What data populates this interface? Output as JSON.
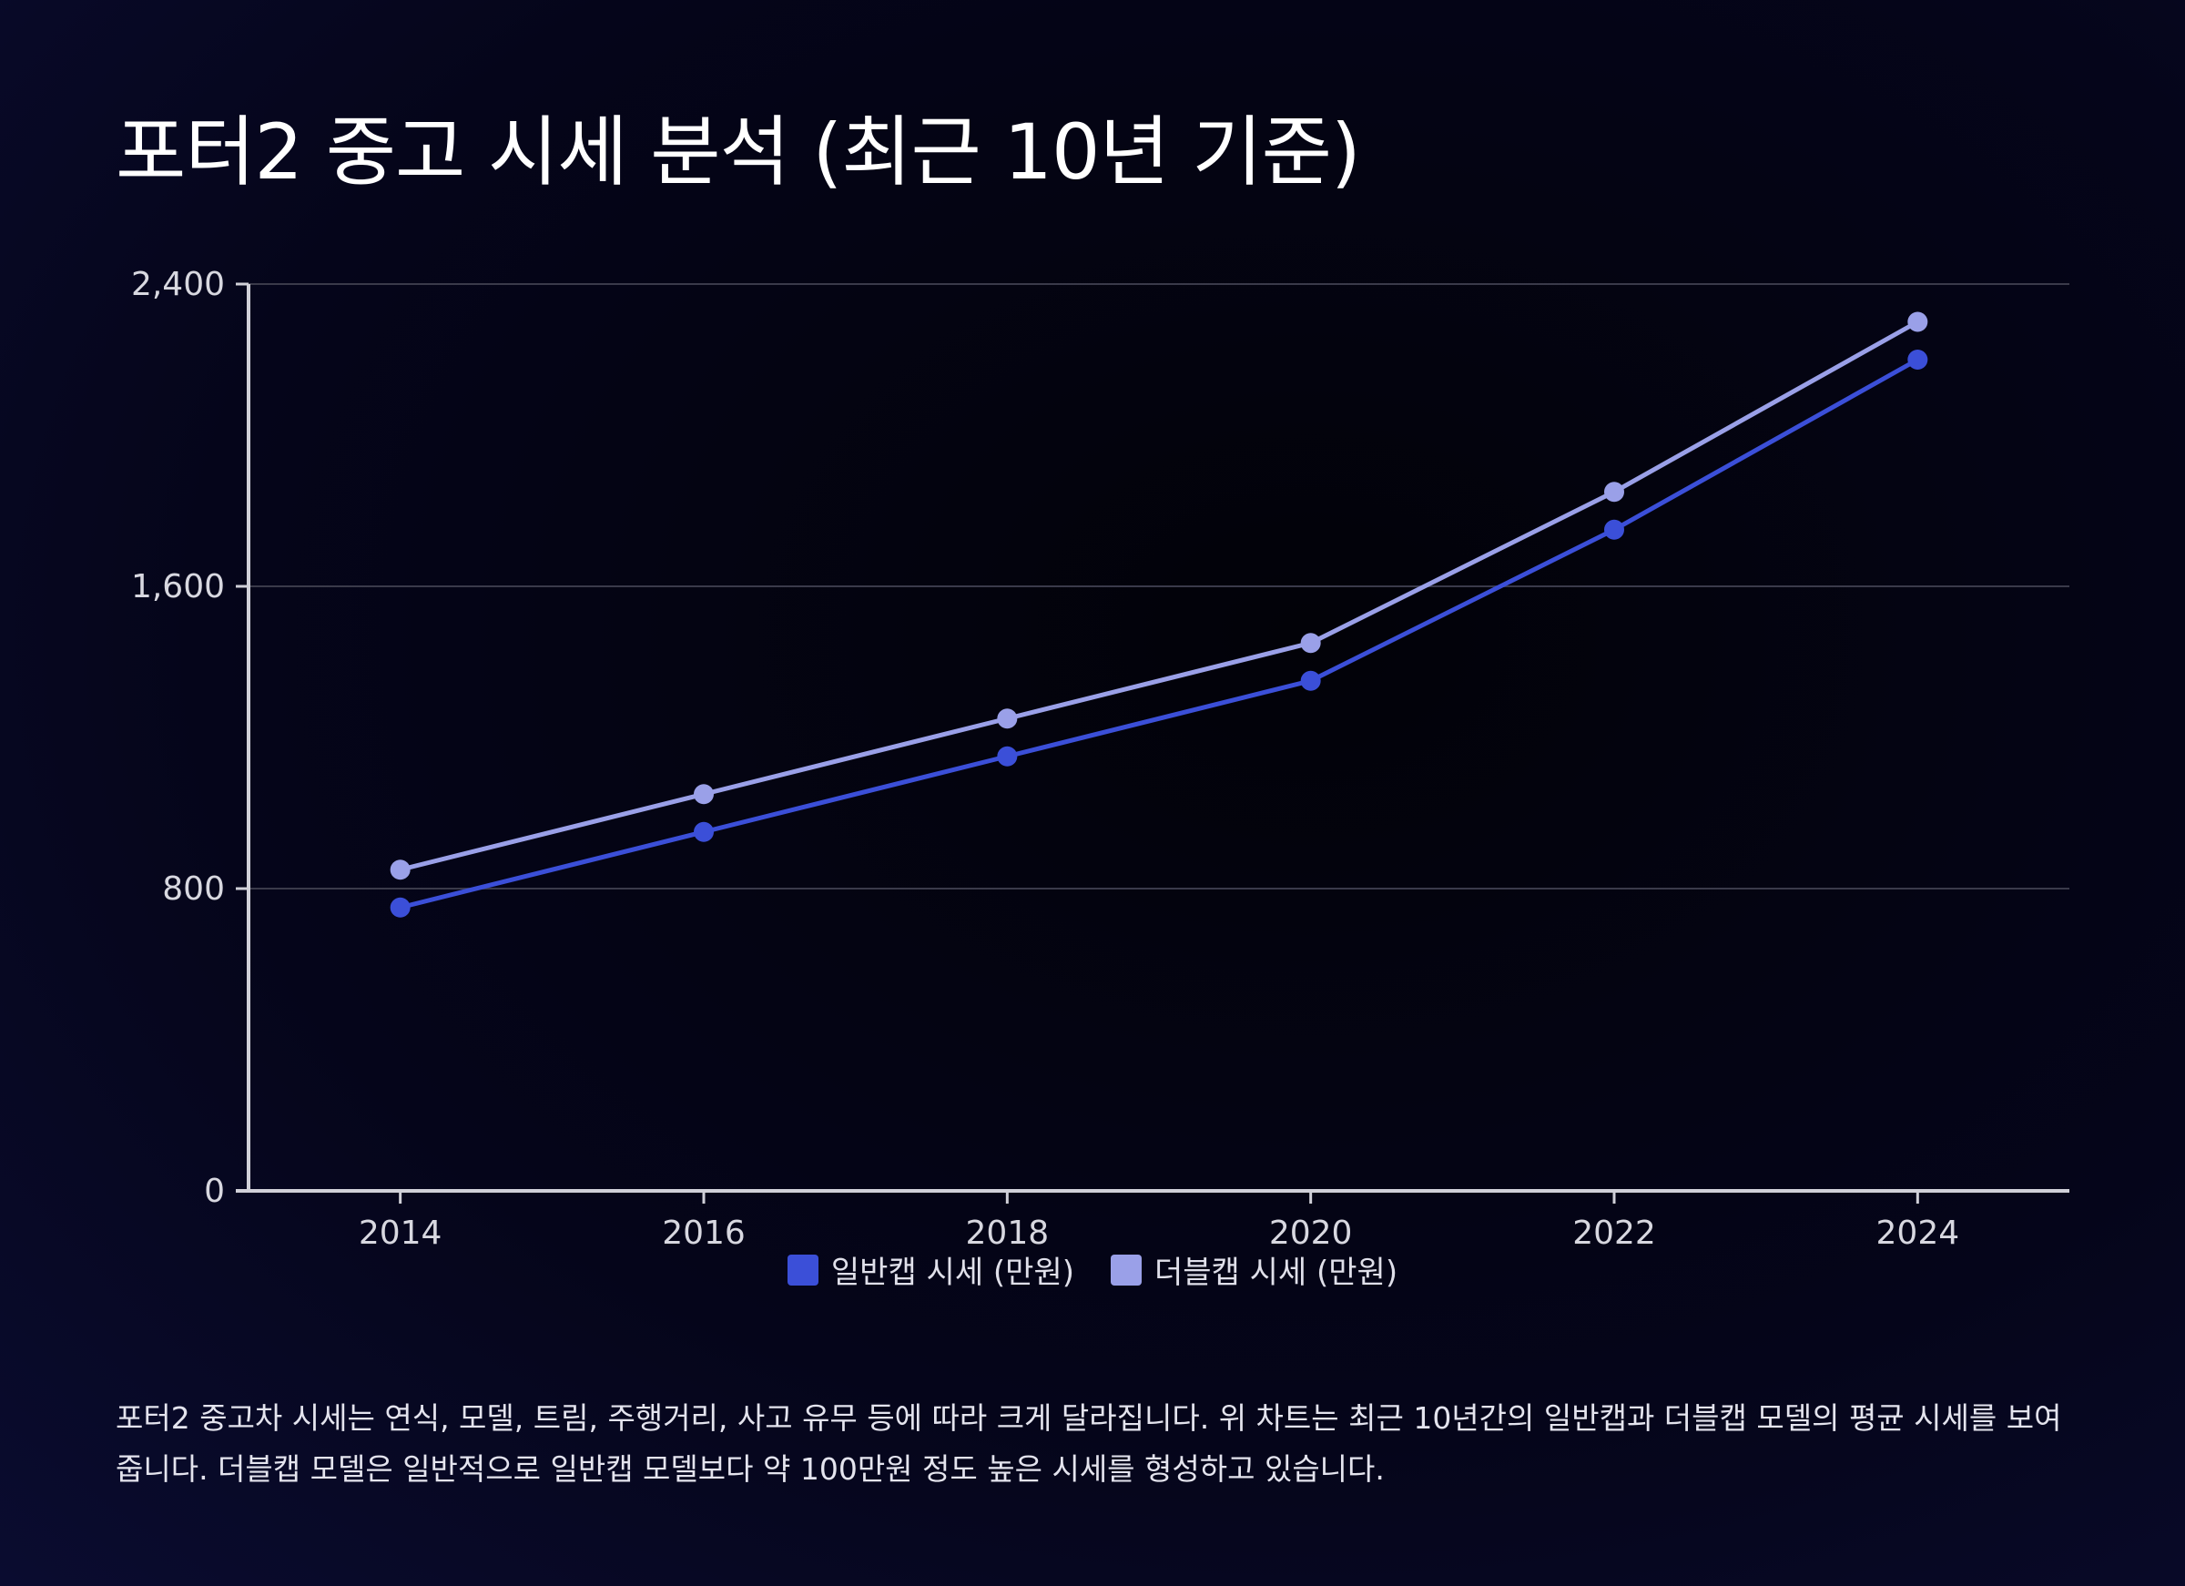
{
  "title": "포터2 중고 시세 분석 (최근 10년 기준)",
  "description": "포터2 중고차 시세는 연식, 모델, 트림, 주행거리, 사고 유무 등에 따라 크게 달라집니다. 위 차트는 최근 10년간의 일반캡과 더블캡 모델의 평균 시세를 보여줍니다. 더블캡 모델은 일반적으로 일반캡 모델보다 약 100만원 정도 높은 시세를 형성하고 있습니다.",
  "chart_data": {
    "type": "line",
    "title": "포터2 중고 시세 분석 (최근 10년 기준)",
    "xlabel": "",
    "ylabel": "",
    "x": [
      2014,
      2016,
      2018,
      2020,
      2022,
      2024
    ],
    "x_tick_labels": [
      "2014",
      "2016",
      "2018",
      "2020",
      "2022",
      "2024"
    ],
    "xlim": [
      2013,
      2025
    ],
    "ylim": [
      0,
      2400
    ],
    "y_ticks": [
      0,
      800,
      1600,
      2400
    ],
    "y_tick_labels": [
      "0",
      "800",
      "1,600",
      "2,400"
    ],
    "grid": true,
    "legend_position": "bottom-center",
    "series": [
      {
        "name": "일반캡 시세 (만원)",
        "color": "#3b4fd8",
        "values": [
          750,
          950,
          1150,
          1350,
          1750,
          2200
        ]
      },
      {
        "name": "더블캡 시세 (만원)",
        "color": "#9aa0e8",
        "values": [
          850,
          1050,
          1250,
          1450,
          1850,
          2300
        ]
      }
    ]
  }
}
